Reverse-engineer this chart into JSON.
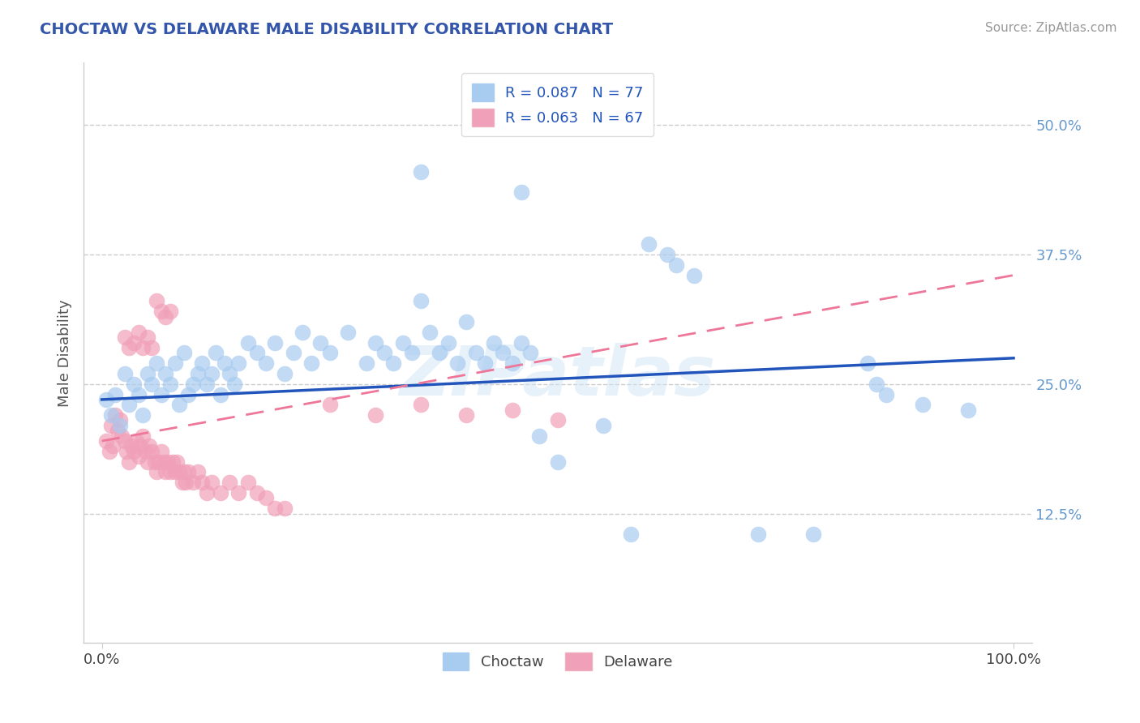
{
  "title": "CHOCTAW VS DELAWARE MALE DISABILITY CORRELATION CHART",
  "source_text": "Source: ZipAtlas.com",
  "ylabel": "Male Disability",
  "xlim": [
    -0.02,
    1.02
  ],
  "ylim": [
    0.0,
    0.56
  ],
  "yticks": [
    0.125,
    0.25,
    0.375,
    0.5
  ],
  "ytick_labels": [
    "12.5%",
    "25.0%",
    "37.5%",
    "50.0%"
  ],
  "xticks": [
    0.0,
    1.0
  ],
  "xtick_labels": [
    "0.0%",
    "100.0%"
  ],
  "choctaw_R": 0.087,
  "choctaw_N": 77,
  "delaware_R": 0.063,
  "delaware_N": 67,
  "choctaw_color": "#A8CBF0",
  "delaware_color": "#F0A0B8",
  "choctaw_line_color": "#2255BB",
  "delaware_line_color": "#EE7799",
  "watermark": "ZIPatlas",
  "background_color": "#FFFFFF",
  "choctaw_x": [
    0.005,
    0.01,
    0.015,
    0.02,
    0.025,
    0.03,
    0.035,
    0.04,
    0.045,
    0.05,
    0.055,
    0.06,
    0.065,
    0.07,
    0.075,
    0.08,
    0.085,
    0.09,
    0.095,
    0.1,
    0.105,
    0.11,
    0.115,
    0.12,
    0.125,
    0.13,
    0.135,
    0.14,
    0.145,
    0.15,
    0.16,
    0.17,
    0.18,
    0.19,
    0.2,
    0.21,
    0.22,
    0.23,
    0.24,
    0.25,
    0.27,
    0.29,
    0.3,
    0.31,
    0.32,
    0.33,
    0.34,
    0.35,
    0.36,
    0.37,
    0.38,
    0.39,
    0.4,
    0.41,
    0.42,
    0.43,
    0.44,
    0.45,
    0.46,
    0.47,
    0.48,
    0.5,
    0.55,
    0.58,
    0.35,
    0.46,
    0.72,
    0.78,
    0.84,
    0.85,
    0.86,
    0.9,
    0.95,
    0.6,
    0.62,
    0.63,
    0.65
  ],
  "choctaw_y": [
    0.235,
    0.22,
    0.24,
    0.21,
    0.26,
    0.23,
    0.25,
    0.24,
    0.22,
    0.26,
    0.25,
    0.27,
    0.24,
    0.26,
    0.25,
    0.27,
    0.23,
    0.28,
    0.24,
    0.25,
    0.26,
    0.27,
    0.25,
    0.26,
    0.28,
    0.24,
    0.27,
    0.26,
    0.25,
    0.27,
    0.29,
    0.28,
    0.27,
    0.29,
    0.26,
    0.28,
    0.3,
    0.27,
    0.29,
    0.28,
    0.3,
    0.27,
    0.29,
    0.28,
    0.27,
    0.29,
    0.28,
    0.33,
    0.3,
    0.28,
    0.29,
    0.27,
    0.31,
    0.28,
    0.27,
    0.29,
    0.28,
    0.27,
    0.29,
    0.28,
    0.2,
    0.175,
    0.21,
    0.105,
    0.455,
    0.435,
    0.105,
    0.105,
    0.27,
    0.25,
    0.24,
    0.23,
    0.225,
    0.385,
    0.375,
    0.365,
    0.355
  ],
  "delaware_x": [
    0.005,
    0.008,
    0.01,
    0.012,
    0.015,
    0.017,
    0.02,
    0.022,
    0.025,
    0.027,
    0.03,
    0.032,
    0.035,
    0.038,
    0.04,
    0.042,
    0.045,
    0.048,
    0.05,
    0.052,
    0.055,
    0.058,
    0.06,
    0.062,
    0.065,
    0.068,
    0.07,
    0.072,
    0.075,
    0.078,
    0.08,
    0.082,
    0.085,
    0.088,
    0.09,
    0.092,
    0.095,
    0.1,
    0.105,
    0.11,
    0.115,
    0.12,
    0.13,
    0.14,
    0.15,
    0.16,
    0.17,
    0.18,
    0.19,
    0.2,
    0.025,
    0.03,
    0.035,
    0.04,
    0.045,
    0.05,
    0.055,
    0.06,
    0.065,
    0.07,
    0.075,
    0.25,
    0.3,
    0.35,
    0.4,
    0.45,
    0.5
  ],
  "delaware_y": [
    0.195,
    0.185,
    0.21,
    0.19,
    0.22,
    0.205,
    0.215,
    0.2,
    0.195,
    0.185,
    0.175,
    0.19,
    0.185,
    0.195,
    0.18,
    0.19,
    0.2,
    0.185,
    0.175,
    0.19,
    0.185,
    0.175,
    0.165,
    0.175,
    0.185,
    0.175,
    0.165,
    0.175,
    0.165,
    0.175,
    0.165,
    0.175,
    0.165,
    0.155,
    0.165,
    0.155,
    0.165,
    0.155,
    0.165,
    0.155,
    0.145,
    0.155,
    0.145,
    0.155,
    0.145,
    0.155,
    0.145,
    0.14,
    0.13,
    0.13,
    0.295,
    0.285,
    0.29,
    0.3,
    0.285,
    0.295,
    0.285,
    0.33,
    0.32,
    0.315,
    0.32,
    0.23,
    0.22,
    0.23,
    0.22,
    0.225,
    0.215
  ]
}
